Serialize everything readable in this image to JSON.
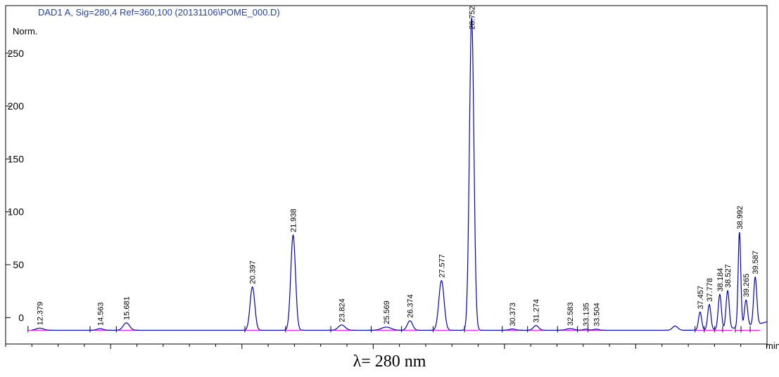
{
  "title": "DAD1 A, Sig=280,4 Ref=360,100 (20131106\\POME_000.D)",
  "y_unit": "Norm.",
  "x_unit": "min",
  "caption": "λ= 280 nm",
  "colors": {
    "trace": "#0000cc",
    "baseline": "#ff00ff",
    "axis": "#000000",
    "title": "#1f3fbf"
  },
  "chart_data": {
    "type": "line",
    "title": "DAD1 A, Sig=280,4 Ref=360,100 (20131106\\POME_000.D)",
    "xlabel": "min",
    "ylabel": "Norm.",
    "xlim": [
      11,
      40
    ],
    "ylim": [
      -25,
      295
    ],
    "x_ticks": [
      15,
      20,
      25,
      30,
      35
    ],
    "y_ticks": [
      0,
      50,
      100,
      150,
      200,
      250
    ],
    "baseline": -12,
    "grid": false,
    "legend": "none",
    "peaks": [
      {
        "rt": 12.3,
        "height": 2,
        "width": 0.14,
        "label": "12.379"
      },
      {
        "rt": 14.6,
        "height": 1.5,
        "width": 0.12,
        "label": "14.563"
      },
      {
        "rt": 15.6,
        "height": 7,
        "width": 0.12,
        "label": "15.681"
      },
      {
        "rt": 20.4,
        "height": 41,
        "width": 0.09,
        "label": "20.397"
      },
      {
        "rt": 21.95,
        "height": 90,
        "width": 0.09,
        "label": "21.938"
      },
      {
        "rt": 23.8,
        "height": 5,
        "width": 0.13,
        "label": "23.824"
      },
      {
        "rt": 25.5,
        "height": 3,
        "width": 0.18,
        "label": "25.569"
      },
      {
        "rt": 26.4,
        "height": 9,
        "width": 0.1,
        "label": "26.374"
      },
      {
        "rt": 27.6,
        "height": 47,
        "width": 0.1,
        "label": "27.577"
      },
      {
        "rt": 28.75,
        "height": 296,
        "width": 0.085,
        "label": "28.752"
      },
      {
        "rt": 30.3,
        "height": 1.2,
        "width": 0.12,
        "label": "30.373"
      },
      {
        "rt": 31.2,
        "height": 4.5,
        "width": 0.1,
        "label": "31.274"
      },
      {
        "rt": 32.5,
        "height": 1.5,
        "width": 0.15,
        "label": "32.583"
      },
      {
        "rt": 33.1,
        "height": 1,
        "width": 0.1,
        "label": "33.135"
      },
      {
        "rt": 33.5,
        "height": 1,
        "width": 0.1,
        "label": "33.504"
      },
      {
        "rt": 36.5,
        "height": 4,
        "width": 0.1,
        "label": ""
      },
      {
        "rt": 37.45,
        "height": 17,
        "width": 0.06,
        "label": "37.457"
      },
      {
        "rt": 37.8,
        "height": 24,
        "width": 0.06,
        "label": "37.778"
      },
      {
        "rt": 38.2,
        "height": 33,
        "width": 0.06,
        "label": "38.184"
      },
      {
        "rt": 38.5,
        "height": 36,
        "width": 0.06,
        "label": "38.527"
      },
      {
        "rt": 38.95,
        "height": 90,
        "width": 0.05,
        "label": "38.992"
      },
      {
        "rt": 39.2,
        "height": 25,
        "width": 0.06,
        "label": "39.265"
      },
      {
        "rt": 39.55,
        "height": 45,
        "width": 0.06,
        "label": "39.587"
      }
    ]
  }
}
